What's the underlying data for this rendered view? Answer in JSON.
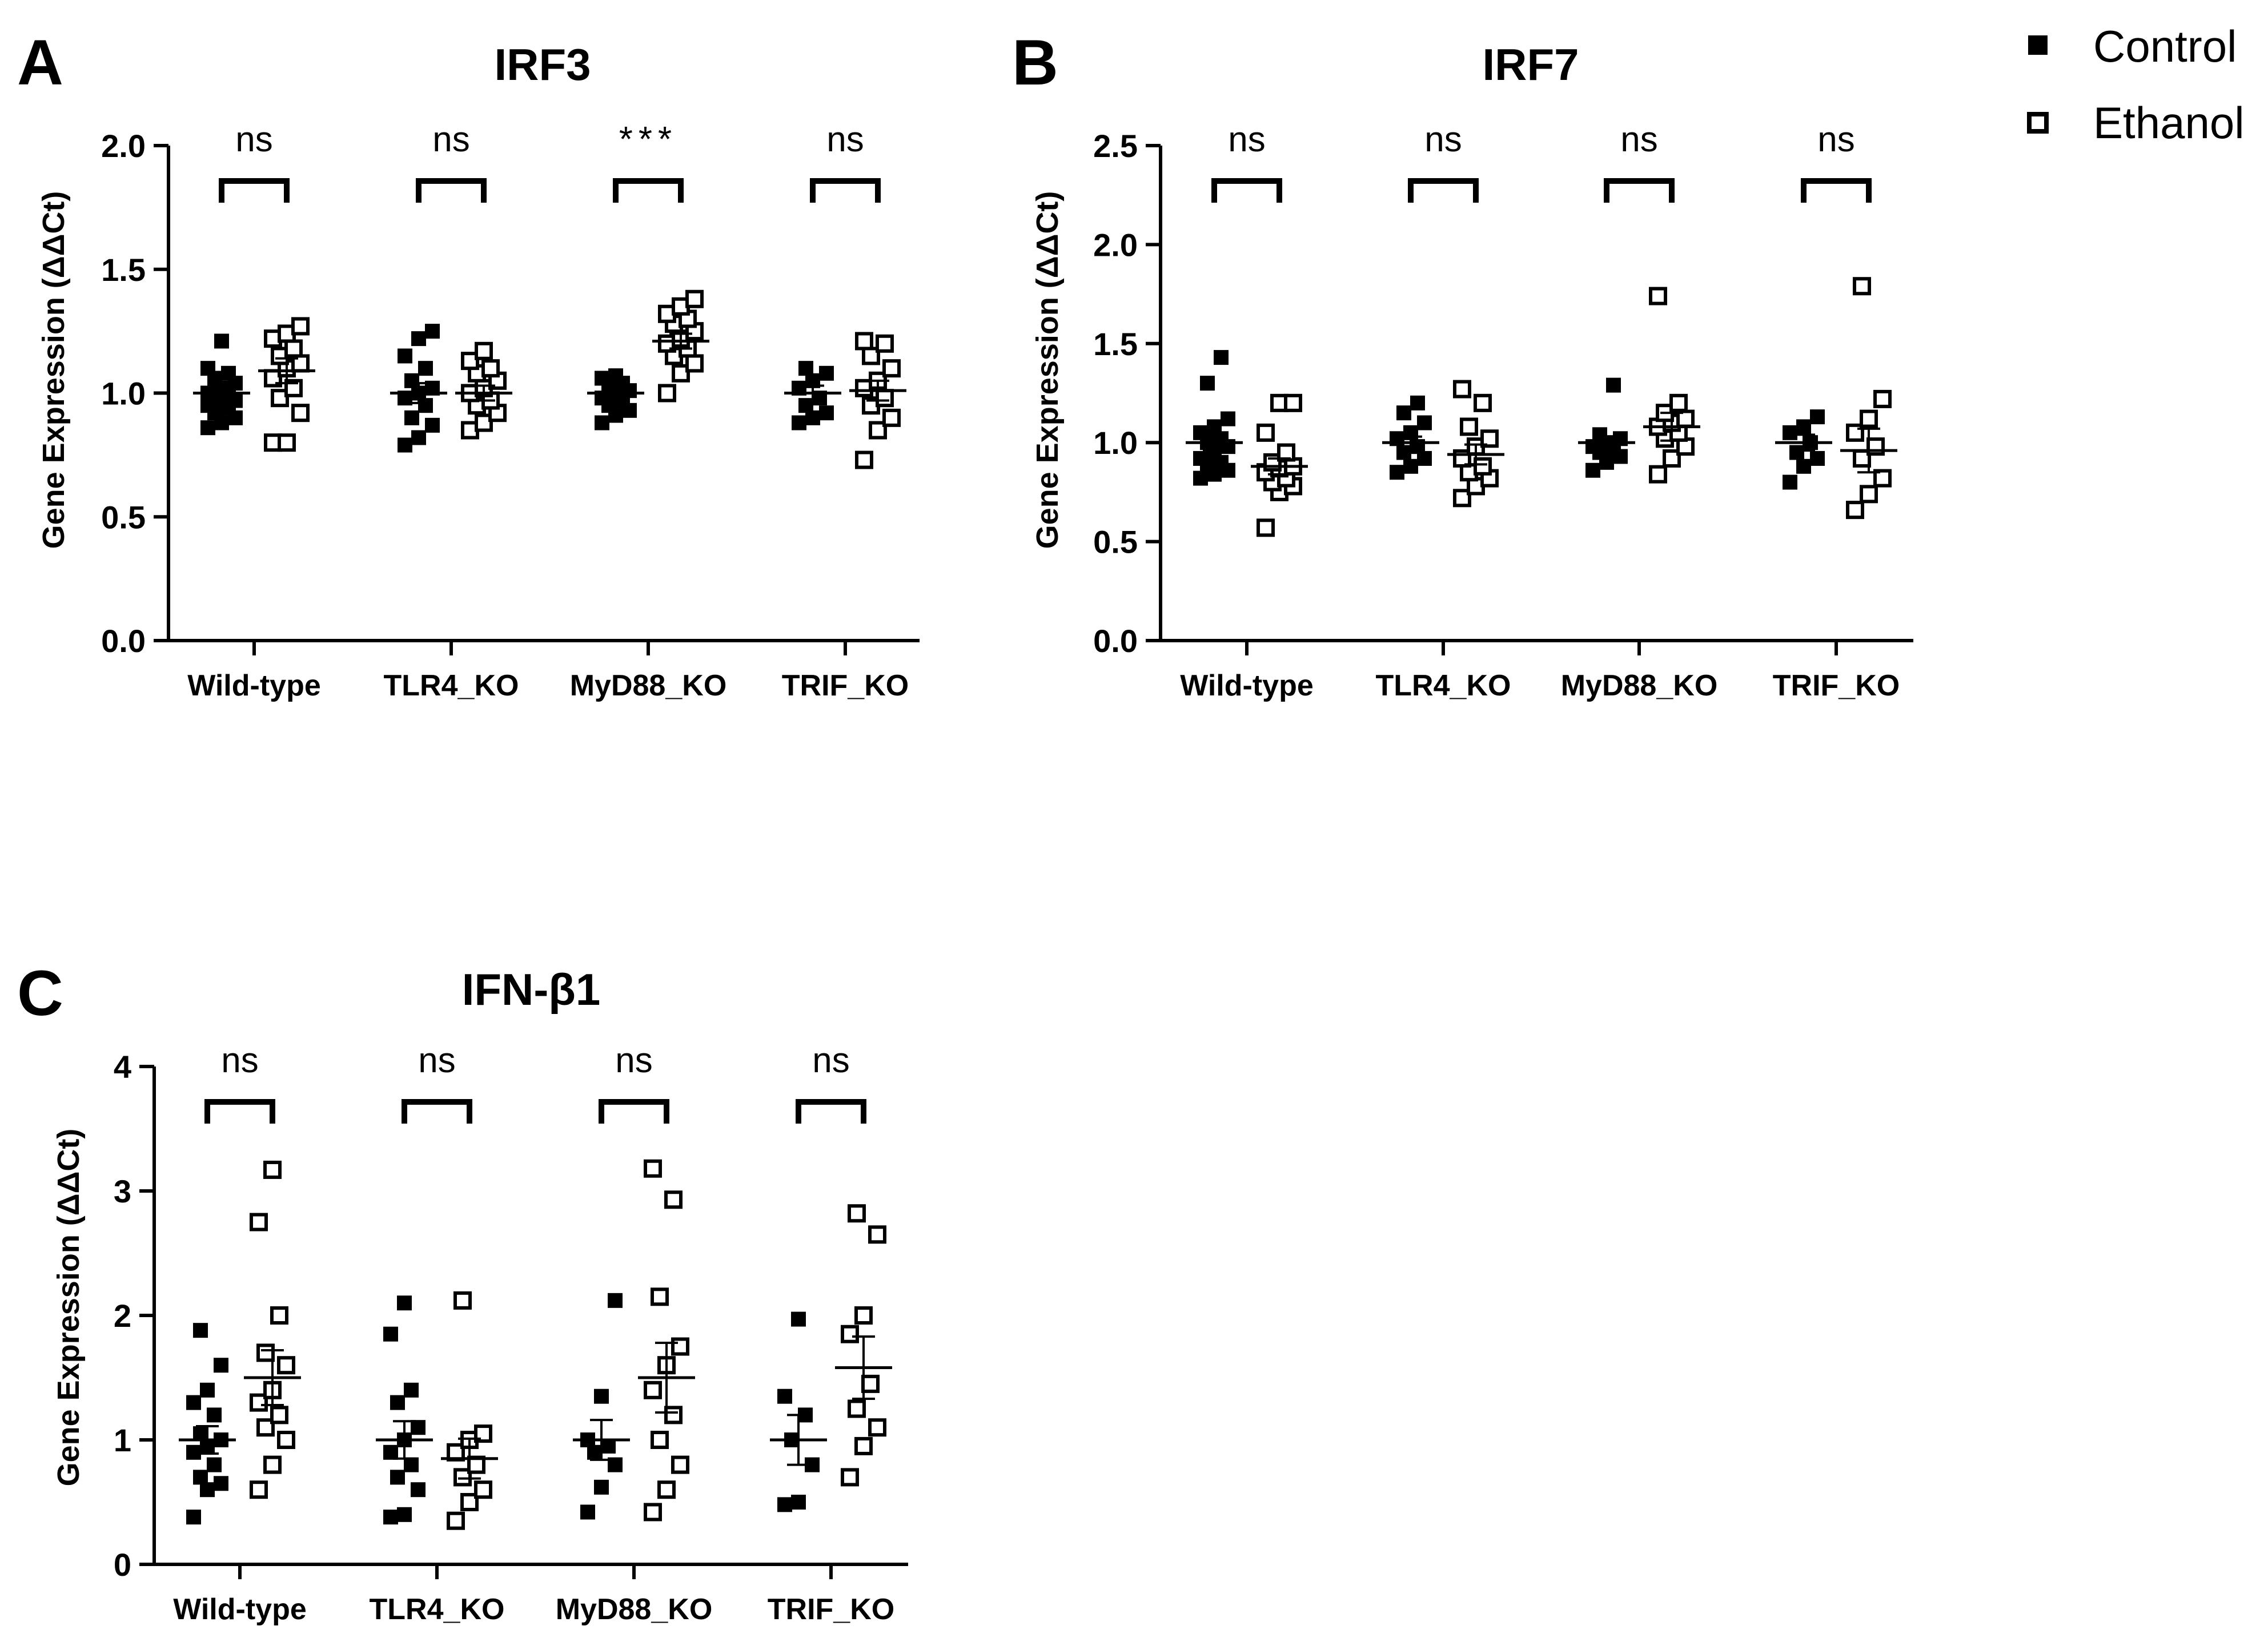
{
  "legend": {
    "items": [
      {
        "label": "Control",
        "marker": "filled-square"
      },
      {
        "label": "Ethanol",
        "marker": "open-square"
      }
    ]
  },
  "colors": {
    "ink": "#000000",
    "background": "#ffffff"
  },
  "chart_data": [
    {
      "panel": "A",
      "type": "scatter",
      "title": "IRF3",
      "xlabel": "",
      "ylabel": "Gene Expression (ΔΔCt)",
      "ylim": [
        0,
        2.0
      ],
      "yticks": [
        0.0,
        0.5,
        1.0,
        1.5,
        2.0
      ],
      "ytick_labels": [
        "0.0",
        "0.5",
        "1.0",
        "1.5",
        "2.0"
      ],
      "categories": [
        "Wild-type",
        "TLR4_KO",
        "MyD88_KO",
        "TRIF_KO"
      ],
      "significance": [
        "ns",
        "ns",
        "***",
        "ns"
      ],
      "series": [
        {
          "name": "Control",
          "points": [
            [
              0.86,
              0.88,
              0.9,
              0.92,
              0.94,
              0.95,
              0.96,
              0.97,
              0.98,
              0.99,
              1.0,
              1.02,
              1.04,
              1.06,
              1.08,
              1.1,
              1.21
            ],
            [
              0.79,
              0.82,
              0.87,
              0.9,
              0.95,
              0.98,
              1.0,
              1.02,
              1.05,
              1.1,
              1.15,
              1.22,
              1.25
            ],
            [
              0.88,
              0.91,
              0.93,
              0.95,
              0.97,
              0.98,
              1.0,
              1.01,
              1.02,
              1.04,
              1.06,
              1.07
            ],
            [
              0.88,
              0.9,
              0.92,
              0.95,
              0.98,
              1.02,
              1.05,
              1.08,
              1.1
            ]
          ],
          "mean": [
            1.0,
            1.0,
            1.0,
            1.0
          ],
          "sem": [
            0.02,
            0.04,
            0.02,
            0.03
          ]
        },
        {
          "name": "Ethanol",
          "points": [
            [
              0.8,
              0.8,
              0.92,
              0.98,
              1.02,
              1.06,
              1.1,
              1.12,
              1.15,
              1.18,
              1.22,
              1.24,
              1.27
            ],
            [
              0.85,
              0.88,
              0.92,
              0.95,
              0.97,
              1.0,
              1.02,
              1.05,
              1.08,
              1.1,
              1.13,
              1.17
            ],
            [
              1.0,
              1.08,
              1.12,
              1.15,
              1.18,
              1.2,
              1.22,
              1.25,
              1.28,
              1.3,
              1.32,
              1.35,
              1.38
            ],
            [
              0.73,
              0.85,
              0.9,
              0.95,
              0.98,
              1.02,
              1.05,
              1.1,
              1.15,
              1.2,
              1.21
            ]
          ],
          "mean": [
            1.09,
            1.0,
            1.21,
            1.01
          ],
          "sem": [
            0.05,
            0.03,
            0.03,
            0.04
          ]
        }
      ]
    },
    {
      "panel": "B",
      "type": "scatter",
      "title": "IRF7",
      "xlabel": "",
      "ylabel": "Gene Expression (ΔΔCt)",
      "ylim": [
        0,
        2.5
      ],
      "yticks": [
        0.0,
        0.5,
        1.0,
        1.5,
        2.0,
        2.5
      ],
      "ytick_labels": [
        "0.0",
        "0.5",
        "1.0",
        "1.5",
        "2.0",
        "2.5"
      ],
      "categories": [
        "Wild-type",
        "TLR4_KO",
        "MyD88_KO",
        "TRIF_KO"
      ],
      "significance": [
        "ns",
        "ns",
        "ns",
        "ns"
      ],
      "series": [
        {
          "name": "Control",
          "points": [
            [
              0.82,
              0.84,
              0.86,
              0.88,
              0.9,
              0.92,
              0.95,
              0.98,
              1.0,
              1.02,
              1.05,
              1.08,
              1.12,
              1.3,
              1.43
            ],
            [
              0.85,
              0.88,
              0.92,
              0.95,
              0.98,
              1.02,
              1.05,
              1.1,
              1.15,
              1.2
            ],
            [
              0.86,
              0.9,
              0.93,
              0.95,
              0.97,
              0.98,
              1.0,
              1.02,
              1.04,
              1.29
            ],
            [
              0.8,
              0.88,
              0.92,
              0.95,
              1.0,
              1.05,
              1.08,
              1.13
            ]
          ],
          "mean": [
            1.0,
            1.0,
            1.0,
            1.0
          ],
          "sem": [
            0.04,
            0.03,
            0.03,
            0.04
          ]
        },
        {
          "name": "Ethanol",
          "points": [
            [
              0.57,
              0.75,
              0.78,
              0.8,
              0.82,
              0.85,
              0.87,
              0.88,
              0.9,
              0.95,
              1.05,
              1.2,
              1.2
            ],
            [
              0.72,
              0.78,
              0.82,
              0.85,
              0.88,
              0.92,
              0.98,
              1.02,
              1.08,
              1.2,
              1.27
            ],
            [
              0.84,
              0.92,
              0.98,
              1.02,
              1.05,
              1.08,
              1.1,
              1.12,
              1.15,
              1.2,
              1.74
            ],
            [
              0.66,
              0.74,
              0.82,
              0.92,
              0.98,
              1.05,
              1.12,
              1.22,
              1.79
            ]
          ],
          "mean": [
            0.88,
            0.94,
            1.08,
            0.96
          ],
          "sem": [
            0.04,
            0.05,
            0.07,
            0.11
          ]
        }
      ]
    },
    {
      "panel": "C",
      "type": "scatter",
      "title": "IFN-β1",
      "xlabel": "",
      "ylabel": "Gene Expression (ΔΔCt)",
      "ylim": [
        0,
        4
      ],
      "yticks": [
        0,
        1,
        2,
        3,
        4
      ],
      "ytick_labels": [
        "0",
        "1",
        "2",
        "3",
        "4"
      ],
      "categories": [
        "Wild-type",
        "TLR4_KO",
        "MyD88_KO",
        "TRIF_KO"
      ],
      "significance": [
        "ns",
        "ns",
        "ns",
        "ns"
      ],
      "series": [
        {
          "name": "Control",
          "points": [
            [
              0.38,
              0.6,
              0.65,
              0.7,
              0.8,
              0.9,
              0.95,
              1.0,
              1.05,
              1.2,
              1.3,
              1.4,
              1.6,
              1.88
            ],
            [
              0.38,
              0.4,
              0.6,
              0.7,
              0.8,
              0.9,
              1.0,
              1.1,
              1.3,
              1.4,
              1.85,
              2.1
            ],
            [
              0.42,
              0.62,
              0.8,
              0.9,
              0.95,
              1.0,
              1.35,
              2.12
            ],
            [
              0.48,
              0.5,
              0.8,
              1.0,
              1.2,
              1.35,
              1.97
            ]
          ],
          "mean": [
            1.0,
            1.0,
            1.0,
            1.0
          ],
          "sem": [
            0.11,
            0.15,
            0.16,
            0.2
          ]
        },
        {
          "name": "Ethanol",
          "points": [
            [
              0.6,
              0.8,
              1.0,
              1.1,
              1.2,
              1.3,
              1.4,
              1.6,
              1.7,
              2.0,
              2.75,
              3.17
            ],
            [
              0.35,
              0.5,
              0.6,
              0.7,
              0.8,
              0.9,
              1.0,
              1.05,
              2.12
            ],
            [
              0.42,
              0.6,
              0.8,
              1.0,
              1.2,
              1.4,
              1.6,
              1.75,
              2.15,
              2.93,
              3.18
            ],
            [
              0.7,
              0.95,
              1.1,
              1.25,
              1.45,
              1.85,
              2.0,
              2.65,
              2.82
            ]
          ],
          "mean": [
            1.5,
            0.85,
            1.5,
            1.58
          ],
          "sem": [
            0.22,
            0.16,
            0.28,
            0.25
          ]
        }
      ]
    }
  ]
}
